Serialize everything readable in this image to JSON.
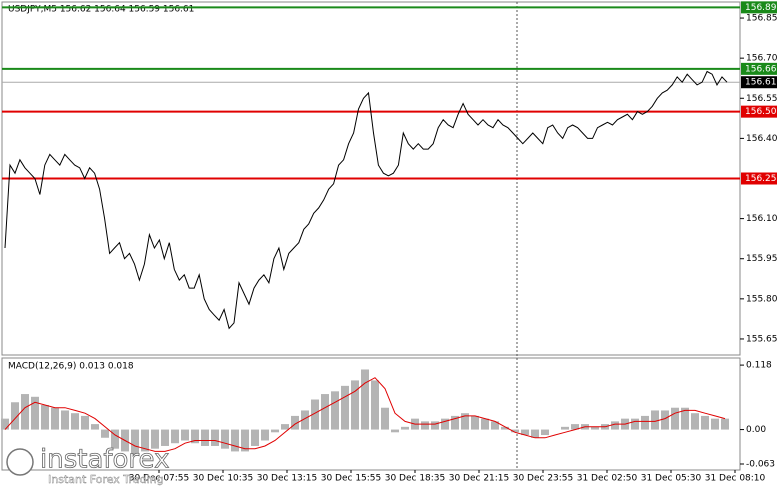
{
  "chart_data": [
    {
      "type": "line",
      "title": "USDJPY,M5  156.62 156.64 156.59 156.61",
      "color": "#000000",
      "values": [
        155.99,
        156.3,
        156.27,
        156.32,
        156.29,
        156.27,
        156.25,
        156.19,
        156.3,
        156.34,
        156.32,
        156.3,
        156.34,
        156.32,
        156.3,
        156.29,
        156.25,
        156.29,
        156.27,
        156.21,
        156.1,
        155.97,
        155.99,
        156.01,
        155.95,
        155.97,
        155.93,
        155.87,
        155.93,
        156.04,
        155.99,
        156.02,
        155.95,
        156.01,
        155.91,
        155.87,
        155.89,
        155.84,
        155.84,
        155.89,
        155.8,
        155.76,
        155.74,
        155.72,
        155.76,
        155.69,
        155.71,
        155.86,
        155.82,
        155.78,
        155.84,
        155.87,
        155.89,
        155.86,
        155.95,
        155.99,
        155.91,
        155.97,
        155.99,
        156.01,
        156.06,
        156.08,
        156.12,
        156.14,
        156.17,
        156.21,
        156.23,
        156.3,
        156.32,
        156.38,
        156.42,
        156.51,
        156.55,
        156.57,
        156.42,
        156.3,
        156.27,
        156.26,
        156.27,
        156.3,
        156.42,
        156.38,
        156.36,
        156.38,
        156.36,
        156.36,
        156.38,
        156.44,
        156.47,
        156.45,
        156.44,
        156.49,
        156.53,
        156.49,
        156.47,
        156.45,
        156.47,
        156.45,
        156.44,
        156.47,
        156.45,
        156.44,
        156.42,
        156.4,
        156.38,
        156.4,
        156.42,
        156.4,
        156.38,
        156.44,
        156.45,
        156.42,
        156.4,
        156.44,
        156.45,
        156.44,
        156.42,
        156.4,
        156.4,
        156.44,
        156.45,
        156.46,
        156.45,
        156.47,
        156.48,
        156.49,
        156.47,
        156.5,
        156.49,
        156.5,
        156.52,
        156.55,
        156.57,
        156.58,
        156.6,
        156.63,
        156.61,
        156.64,
        156.62,
        156.6,
        156.61,
        156.65,
        156.64,
        156.6,
        156.63,
        156.61
      ],
      "ylim": [
        155.59,
        156.91
      ],
      "yticks": [
        156.85,
        {
          "value": 156.7,
          "label": "156.70"
        },
        156.55,
        {
          "value": 156.4,
          "label": "156.40"
        },
        {
          "value": 156.1,
          "label": "156.10"
        },
        155.95,
        {
          "value": 155.8,
          "label": "155.80"
        },
        155.65
      ],
      "levels": [
        {
          "value": 156.89,
          "label": "156.89",
          "color": "#1a8a1a"
        },
        {
          "value": 156.66,
          "label": "156.66",
          "color": "#1a8a1a"
        },
        {
          "value": 156.61,
          "label": "156.61",
          "color": "#000000"
        },
        {
          "value": 156.5,
          "label": "156.50",
          "color": "#e00000"
        },
        {
          "value": 156.25,
          "label": "156.25",
          "color": "#e00000"
        }
      ],
      "x_labels": [
        "30 Dec 07:55",
        "30 Dec 10:35",
        "30 Dec 13:15",
        "30 Dec 15:55",
        "30 Dec 18:35",
        "30 Dec 21:15",
        "30 Dec 23:55",
        "31 Dec 02:50",
        "31 Dec 05:30",
        "31 Dec 08:10"
      ]
    },
    {
      "type": "macd",
      "title": "MACD(12,26,9) 0.013 0.018",
      "series": [
        {
          "type": "bar",
          "color": "#b4b4b4",
          "values": [
            0.02,
            0.05,
            0.065,
            0.06,
            0.045,
            0.04,
            0.035,
            0.03,
            0.025,
            0.01,
            -0.015,
            -0.035,
            -0.04,
            -0.045,
            -0.04,
            -0.035,
            -0.03,
            -0.025,
            -0.02,
            -0.025,
            -0.03,
            -0.03,
            -0.035,
            -0.04,
            -0.04,
            -0.03,
            -0.02,
            -0.005,
            0.01,
            0.025,
            0.035,
            0.055,
            0.065,
            0.07,
            0.08,
            0.09,
            0.11,
            0.09,
            0.04,
            -0.005,
            0.005,
            0.02,
            0.015,
            0.015,
            0.02,
            0.025,
            0.03,
            0.025,
            0.02,
            0.015,
            0.005,
            -0.005,
            -0.01,
            -0.015,
            -0.01,
            0,
            0.005,
            0.01,
            0.01,
            0.005,
            0.01,
            0.015,
            0.02,
            0.02,
            0.025,
            0.035,
            0.035,
            0.04,
            0.04,
            0.03,
            0.025,
            0.02,
            0.02
          ]
        },
        {
          "type": "line",
          "color": "#e00000",
          "values": [
            0,
            0.02,
            0.04,
            0.05,
            0.045,
            0.04,
            0.04,
            0.035,
            0.03,
            0.02,
            0.005,
            -0.01,
            -0.02,
            -0.03,
            -0.035,
            -0.04,
            -0.04,
            -0.035,
            -0.025,
            -0.02,
            -0.02,
            -0.02,
            -0.025,
            -0.03,
            -0.035,
            -0.035,
            -0.03,
            -0.02,
            -0.005,
            0.01,
            0.02,
            0.03,
            0.04,
            0.05,
            0.06,
            0.07,
            0.085,
            0.095,
            0.075,
            0.03,
            0.015,
            0.01,
            0.01,
            0.01,
            0.015,
            0.02,
            0.025,
            0.025,
            0.02,
            0.015,
            0.005,
            -0.005,
            -0.01,
            -0.015,
            -0.015,
            -0.01,
            -0.005,
            0,
            0.005,
            0.005,
            0.005,
            0.01,
            0.01,
            0.015,
            0.015,
            0.015,
            0.02,
            0.03,
            0.035,
            0.035,
            0.03,
            0.025,
            0.02
          ]
        }
      ],
      "ylim": [
        -0.074,
        0.131
      ],
      "yticks": [
        0.118,
        {
          "value": 0,
          "label": "0.00"
        },
        -0.063
      ]
    }
  ],
  "watermark": {
    "brand": "instaforex",
    "tagline": "Instant Forex Trading"
  }
}
